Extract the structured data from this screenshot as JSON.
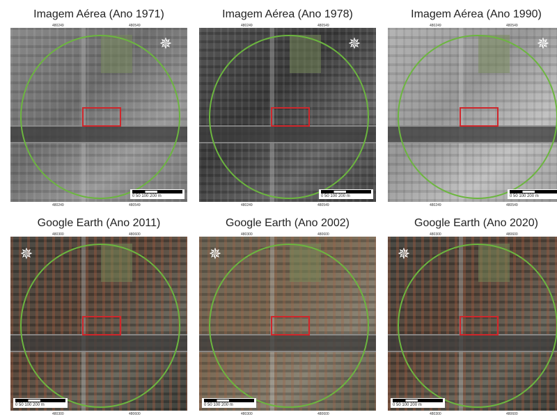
{
  "panels": [
    {
      "title": "Imagem Aérea (Ano 1971)",
      "coords_top": [
        "480249",
        "480549"
      ],
      "scale": "0 50 100 200 m"
    },
    {
      "title": "Imagem Aérea (Ano 1978)",
      "coords_top": [
        "480249",
        "480549"
      ],
      "scale": "0 50 100 200 m"
    },
    {
      "title": "Imagem Aérea (Ano 1990)",
      "coords_top": [
        "480249",
        "480549"
      ],
      "scale": "0 50 100 200 m"
    },
    {
      "title": "Google Earth (Ano 2011)",
      "coords_top": [
        "480300",
        "480600"
      ],
      "scale": "0 50 100 200 m"
    },
    {
      "title": "Google Earth (Ano 2002)",
      "coords_top": [
        "480300",
        "480600"
      ],
      "scale": "0 50 100 200 m"
    },
    {
      "title": "Google Earth (Ano 2020)",
      "coords_top": [
        "480300",
        "480600"
      ],
      "scale": "0 50 100 200 m"
    }
  ],
  "colors": {
    "buffer_circle": "#6cb63f",
    "study_site": "#d0262b"
  },
  "icons": {
    "north_arrow": "compass-rose-icon"
  }
}
